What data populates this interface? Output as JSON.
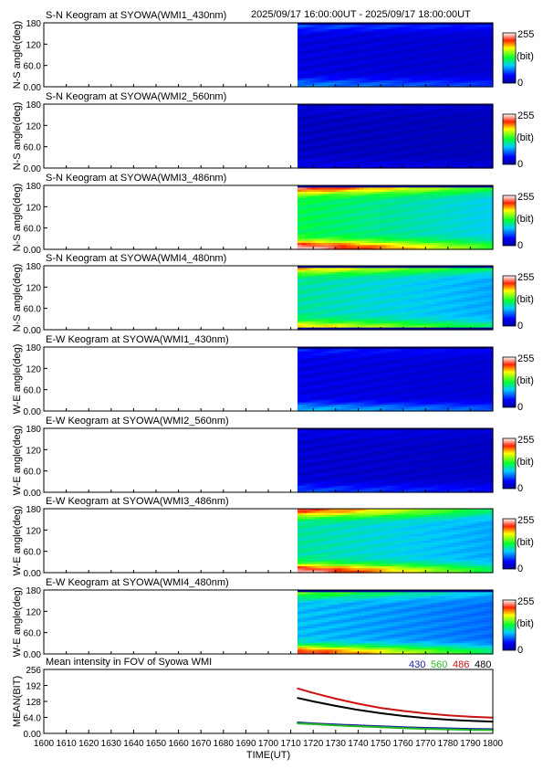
{
  "header": {
    "time_range": "2025/09/17 16:00:00UT - 2025/09/17 18:00:00UT"
  },
  "colorbar": {
    "max_label": "255",
    "unit_label": "(bit)",
    "min_label": "0"
  },
  "chart_data": [
    {
      "type": "heatmap",
      "title": "S-N Keogram at SYOWA(WMI1_430nm)",
      "ylabel": "N-S angle(deg)",
      "yticks": [
        "180",
        "120",
        "60.0",
        "0.00"
      ],
      "ylim": [
        0,
        180
      ],
      "xlim": [
        1600,
        1800
      ],
      "data_start": 1713,
      "zlim": [
        0,
        255
      ],
      "intensity": {
        "base": 0.1,
        "top_dark": true,
        "bottom_dark": false,
        "edge_low": 0.18,
        "edge_high": 0.14,
        "decay": 0.22
      }
    },
    {
      "type": "heatmap",
      "title": "S-N Keogram at SYOWA(WMI2_560nm)",
      "ylabel": "N-S angle(deg)",
      "yticks": [
        "180",
        "120",
        "60.0",
        "0.00"
      ],
      "ylim": [
        0,
        180
      ],
      "xlim": [
        1600,
        1800
      ],
      "data_start": 1713,
      "zlim": [
        0,
        255
      ],
      "intensity": {
        "base": 0.06,
        "top_dark": true,
        "bottom_dark": false,
        "edge_low": 0.06,
        "edge_high": 0.05,
        "decay": 0.2
      }
    },
    {
      "type": "heatmap",
      "title": "S-N Keogram at SYOWA(WMI3_486nm)",
      "ylabel": "N-S angle(deg)",
      "yticks": [
        "180",
        "120",
        "60.0",
        "0.00"
      ],
      "ylim": [
        0,
        180
      ],
      "xlim": [
        1600,
        1800
      ],
      "data_start": 1713,
      "zlim": [
        0,
        255
      ],
      "intensity": {
        "base": 0.48,
        "top_dark": true,
        "bottom_dark": false,
        "edge_low": 0.5,
        "edge_high": 0.45,
        "decay": 0.45
      }
    },
    {
      "type": "heatmap",
      "title": "S-N Keogram at SYOWA(WMI4_480nm)",
      "ylabel": "N-S angle(deg)",
      "yticks": [
        "180",
        "120",
        "60.0",
        "0.00"
      ],
      "ylim": [
        0,
        180
      ],
      "xlim": [
        1600,
        1800
      ],
      "data_start": 1713,
      "zlim": [
        0,
        255
      ],
      "intensity": {
        "base": 0.42,
        "top_dark": true,
        "bottom_dark": true,
        "edge_low": 0.35,
        "edge_high": 0.35,
        "decay": 0.4
      }
    },
    {
      "type": "heatmap",
      "title": "E-W Keogram at SYOWA(WMI1_430nm)",
      "ylabel": "W-E angle(deg)",
      "yticks": [
        "180",
        "120",
        "60.0",
        "0.00"
      ],
      "ylim": [
        0,
        180
      ],
      "xlim": [
        1600,
        1800
      ],
      "data_start": 1713,
      "zlim": [
        0,
        255
      ],
      "intensity": {
        "base": 0.11,
        "top_dark": true,
        "bottom_dark": false,
        "edge_low": 0.22,
        "edge_high": 0.08,
        "decay": 0.22
      }
    },
    {
      "type": "heatmap",
      "title": "E-W Keogram at SYOWA(WMI2_560nm)",
      "ylabel": "W-E angle(deg)",
      "yticks": [
        "180",
        "120",
        "60.0",
        "0.00"
      ],
      "ylim": [
        0,
        180
      ],
      "xlim": [
        1600,
        1800
      ],
      "data_start": 1713,
      "zlim": [
        0,
        255
      ],
      "intensity": {
        "base": 0.08,
        "top_dark": true,
        "bottom_dark": false,
        "edge_low": 0.14,
        "edge_high": 0.05,
        "decay": 0.22
      }
    },
    {
      "type": "heatmap",
      "title": "E-W Keogram at SYOWA(WMI3_486nm)",
      "ylabel": "W-E angle(deg)",
      "yticks": [
        "180",
        "120",
        "60.0",
        "0.00"
      ],
      "ylim": [
        0,
        180
      ],
      "xlim": [
        1600,
        1800
      ],
      "data_start": 1713,
      "zlim": [
        0,
        255
      ],
      "intensity": {
        "base": 0.42,
        "top_dark": false,
        "bottom_dark": false,
        "edge_low": 0.55,
        "edge_high": 0.45,
        "decay": 0.5
      }
    },
    {
      "type": "heatmap",
      "title": "E-W Keogram at SYOWA(WMI4_480nm)",
      "ylabel": "W-E angle(deg)",
      "yticks": [
        "180",
        "120",
        "60.0",
        "0.00"
      ],
      "ylim": [
        0,
        180
      ],
      "xlim": [
        1600,
        1800
      ],
      "data_start": 1713,
      "zlim": [
        0,
        255
      ],
      "intensity": {
        "base": 0.34,
        "top_dark": true,
        "bottom_dark": false,
        "edge_low": 0.55,
        "edge_high": 0.25,
        "decay": 0.45
      }
    },
    {
      "type": "line",
      "title": "Mean intensity in FOV of Syowa WMI",
      "xlabel": "TIME(UT)",
      "ylabel": "MEAN(BIT)",
      "ylim": [
        0,
        256
      ],
      "yticks": [
        "256",
        "192",
        "128",
        "64.0",
        "0.00"
      ],
      "xlim": [
        1600,
        1800
      ],
      "xticks": [
        "1600",
        "1610",
        "1620",
        "1630",
        "1640",
        "1650",
        "1660",
        "1670",
        "1680",
        "1690",
        "1700",
        "1710",
        "1720",
        "1730",
        "1740",
        "1750",
        "1760",
        "1770",
        "1780",
        "1790",
        "1800"
      ],
      "legend": [
        {
          "name": "430",
          "color": "#1a1aa0"
        },
        {
          "name": "560",
          "color": "#22bb22"
        },
        {
          "name": "486",
          "color": "#cc1111"
        },
        {
          "name": "480",
          "color": "#000000"
        }
      ],
      "series": [
        {
          "name": "486",
          "color": "#cc1111",
          "x": [
            1713,
            1720,
            1730,
            1740,
            1750,
            1760,
            1770,
            1780,
            1790,
            1800
          ],
          "y": [
            180,
            162,
            139,
            119,
            102,
            90,
            80,
            72,
            67,
            63
          ]
        },
        {
          "name": "480",
          "color": "#000000",
          "x": [
            1713,
            1720,
            1730,
            1740,
            1750,
            1760,
            1770,
            1780,
            1790,
            1800
          ],
          "y": [
            142,
            128,
            110,
            94,
            81,
            70,
            61,
            55,
            50,
            47
          ]
        },
        {
          "name": "430",
          "color": "#1a1aa0",
          "x": [
            1713,
            1720,
            1730,
            1740,
            1750,
            1760,
            1770,
            1780,
            1790,
            1800
          ],
          "y": [
            44,
            40,
            36,
            32,
            28,
            25,
            22,
            20,
            18,
            17
          ]
        },
        {
          "name": "560",
          "color": "#22bb22",
          "x": [
            1713,
            1720,
            1730,
            1740,
            1750,
            1760,
            1770,
            1780,
            1790,
            1800
          ],
          "y": [
            40,
            37,
            32,
            28,
            25,
            21,
            18,
            16,
            14,
            13
          ]
        }
      ]
    }
  ]
}
